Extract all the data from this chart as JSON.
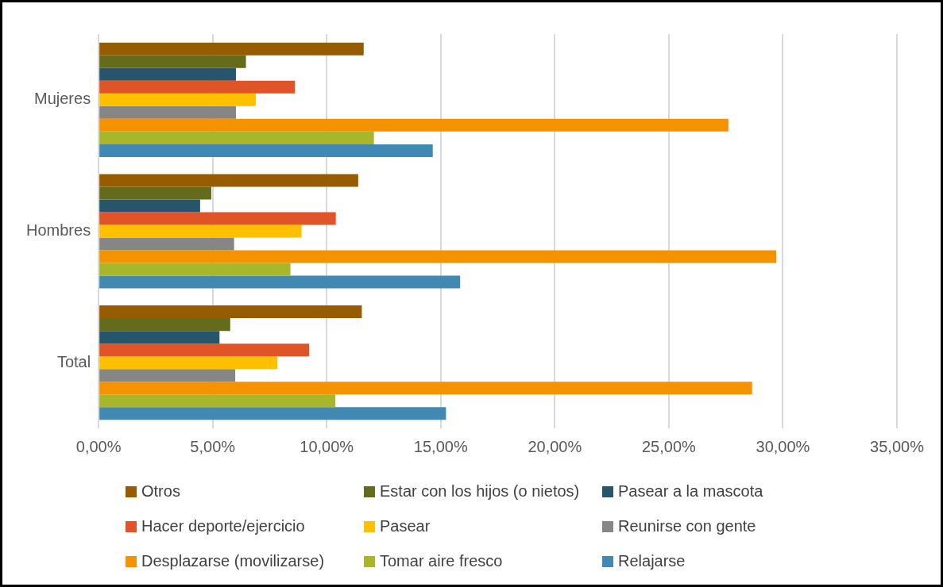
{
  "chart_data": {
    "type": "bar",
    "orientation": "horizontal",
    "categories": [
      "Mujeres",
      "Hombres",
      "Total"
    ],
    "series": [
      {
        "name": "Otros",
        "color": "#975b00",
        "values": [
          11.62,
          11.38,
          11.54
        ]
      },
      {
        "name": "Estar con los hijos (o nietos)",
        "color": "#646b1b",
        "values": [
          6.46,
          4.94,
          5.77
        ]
      },
      {
        "name": "Pasear a la mascota",
        "color": "#26556c",
        "values": [
          6.02,
          4.45,
          5.3
        ]
      },
      {
        "name": "Hacer deporte/ejercicio",
        "color": "#e05428",
        "values": [
          8.61,
          10.4,
          9.23
        ]
      },
      {
        "name": "Pasear",
        "color": "#ffc000",
        "values": [
          6.89,
          8.9,
          7.84
        ]
      },
      {
        "name": "Reunirse con gente",
        "color": "#868686",
        "values": [
          6.02,
          5.94,
          5.99
        ]
      },
      {
        "name": "Desplazarse (movilizarse)",
        "color": "#f59200",
        "values": [
          27.61,
          29.71,
          28.65
        ]
      },
      {
        "name": "Tomar aire fresco",
        "color": "#a7b62a",
        "values": [
          12.07,
          8.41,
          10.38
        ]
      },
      {
        "name": "Relajarse",
        "color": "#4189b3",
        "values": [
          14.65,
          15.85,
          15.23
        ]
      }
    ],
    "xlim": [
      0,
      35
    ],
    "xticks": [
      {
        "value": 0,
        "label": "0,00%"
      },
      {
        "value": 5,
        "label": "5,00%"
      },
      {
        "value": 10,
        "label": "10,00%"
      },
      {
        "value": 15,
        "label": "15,00%"
      },
      {
        "value": 20,
        "label": "20,00%"
      },
      {
        "value": 25,
        "label": "25,00%"
      },
      {
        "value": 30,
        "label": "30,00%"
      },
      {
        "value": 35,
        "label": "35,00%"
      }
    ],
    "grid": "x",
    "legend": "bottom"
  }
}
